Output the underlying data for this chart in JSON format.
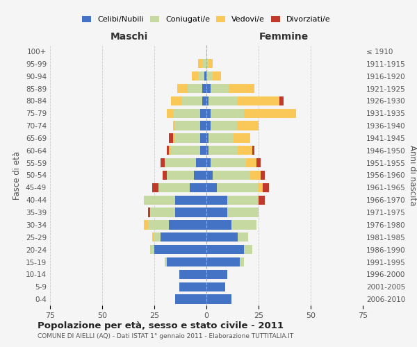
{
  "age_groups": [
    "0-4",
    "5-9",
    "10-14",
    "15-19",
    "20-24",
    "25-29",
    "30-34",
    "35-39",
    "40-44",
    "45-49",
    "50-54",
    "55-59",
    "60-64",
    "65-69",
    "70-74",
    "75-79",
    "80-84",
    "85-89",
    "90-94",
    "95-99",
    "100+"
  ],
  "birth_years": [
    "2006-2010",
    "2001-2005",
    "1996-2000",
    "1991-1995",
    "1986-1990",
    "1981-1985",
    "1976-1980",
    "1971-1975",
    "1966-1970",
    "1961-1965",
    "1956-1960",
    "1951-1955",
    "1946-1950",
    "1941-1945",
    "1936-1940",
    "1931-1935",
    "1926-1930",
    "1921-1925",
    "1916-1920",
    "1911-1915",
    "≤ 1910"
  ],
  "maschi_celibi": [
    15,
    13,
    13,
    19,
    25,
    22,
    18,
    15,
    15,
    8,
    6,
    5,
    3,
    3,
    3,
    3,
    2,
    2,
    1,
    0,
    0
  ],
  "maschi_coniugati": [
    0,
    0,
    0,
    1,
    2,
    3,
    10,
    12,
    15,
    15,
    13,
    15,
    14,
    12,
    12,
    13,
    10,
    7,
    3,
    2,
    0
  ],
  "maschi_vedovi": [
    0,
    0,
    0,
    0,
    0,
    1,
    2,
    0,
    0,
    0,
    0,
    0,
    1,
    1,
    1,
    3,
    5,
    5,
    3,
    2,
    0
  ],
  "maschi_divorziati": [
    0,
    0,
    0,
    0,
    0,
    0,
    0,
    1,
    0,
    3,
    2,
    2,
    1,
    2,
    0,
    0,
    0,
    0,
    0,
    0,
    0
  ],
  "femmine_celibi": [
    12,
    9,
    10,
    16,
    18,
    15,
    12,
    10,
    10,
    5,
    3,
    2,
    1,
    1,
    2,
    2,
    1,
    2,
    0,
    0,
    0
  ],
  "femmine_coniugati": [
    0,
    0,
    0,
    2,
    4,
    5,
    12,
    15,
    15,
    20,
    18,
    17,
    14,
    12,
    13,
    16,
    14,
    9,
    3,
    1,
    0
  ],
  "femmine_vedovi": [
    0,
    0,
    0,
    0,
    0,
    0,
    0,
    0,
    0,
    2,
    5,
    5,
    7,
    8,
    10,
    25,
    20,
    12,
    4,
    2,
    0
  ],
  "femmine_divorziati": [
    0,
    0,
    0,
    0,
    0,
    0,
    0,
    0,
    3,
    3,
    2,
    2,
    1,
    0,
    0,
    0,
    2,
    0,
    0,
    0,
    0
  ],
  "colors": {
    "celibi": "#4472C4",
    "coniugati": "#C5D9A0",
    "vedovi": "#FAC858",
    "divorziati": "#C0392B"
  },
  "title": "Popolazione per età, sesso e stato civile - 2011",
  "subtitle": "COMUNE DI AIELLI (AQ) - Dati ISTAT 1° gennaio 2011 - Elaborazione TUTTITALIA.IT",
  "xlabel_left": "Maschi",
  "xlabel_right": "Femmine",
  "ylabel_left": "Fasce di età",
  "ylabel_right": "Anni di nascita",
  "xlim": 75,
  "bg_color": "#f5f5f5",
  "grid_color": "#cccccc"
}
